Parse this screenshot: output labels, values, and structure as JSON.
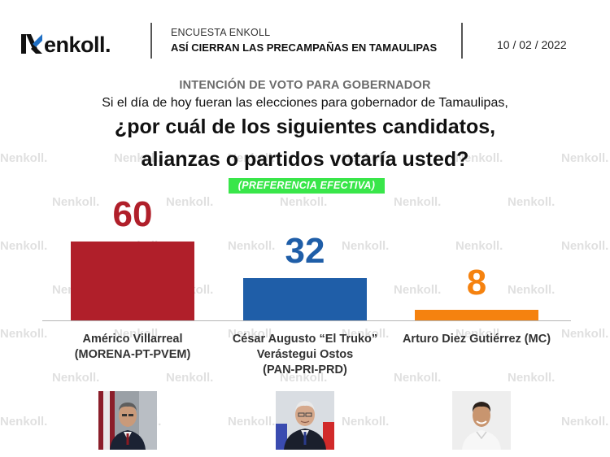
{
  "header": {
    "logo_text": "enkoll.",
    "kicker": "ENCUESTA ENKOLL",
    "title": "ASÍ CIERRAN LAS PRECAMPAÑAS EN TAMAULIPAS",
    "date": "10 / 02 / 2022"
  },
  "question": {
    "kicker": "INTENCIÓN DE VOTO PARA GOBERNADOR",
    "intro": "Si el día de hoy fueran las elecciones para gobernador de Tamaulipas,",
    "main_line1": "¿por cuál de los siguientes candidatos,",
    "main_line2": "alianzas o partidos votaría usted?",
    "badge": "(PREFERENCIA EFECTIVA)"
  },
  "watermark_text": "enkoll.",
  "chart_data": {
    "type": "bar",
    "title": "INTENCIÓN DE VOTO PARA GOBERNADOR",
    "categories": [
      "Américo Villarreal (MORENA-PT-PVEM)",
      "César Augusto “El Truko” Verástegui Ostos (PAN-PRI-PRD)",
      "Arturo Diez Gutiérrez (MC)"
    ],
    "values": [
      60,
      32,
      8
    ],
    "colors": [
      "#b01f2a",
      "#1f5ea8",
      "#f5820f"
    ],
    "labels": [
      [
        "Américo Villarreal",
        "(MORENA-PT-PVEM)"
      ],
      [
        "César Augusto “El Truko”",
        "Verástegui Ostos",
        "(PAN-PRI-PRD)"
      ],
      [
        "Arturo Diez Gutiérrez (MC)"
      ]
    ],
    "value_labels": [
      "60",
      "32",
      "8"
    ],
    "ylim": [
      0,
      60
    ],
    "grid": false
  }
}
